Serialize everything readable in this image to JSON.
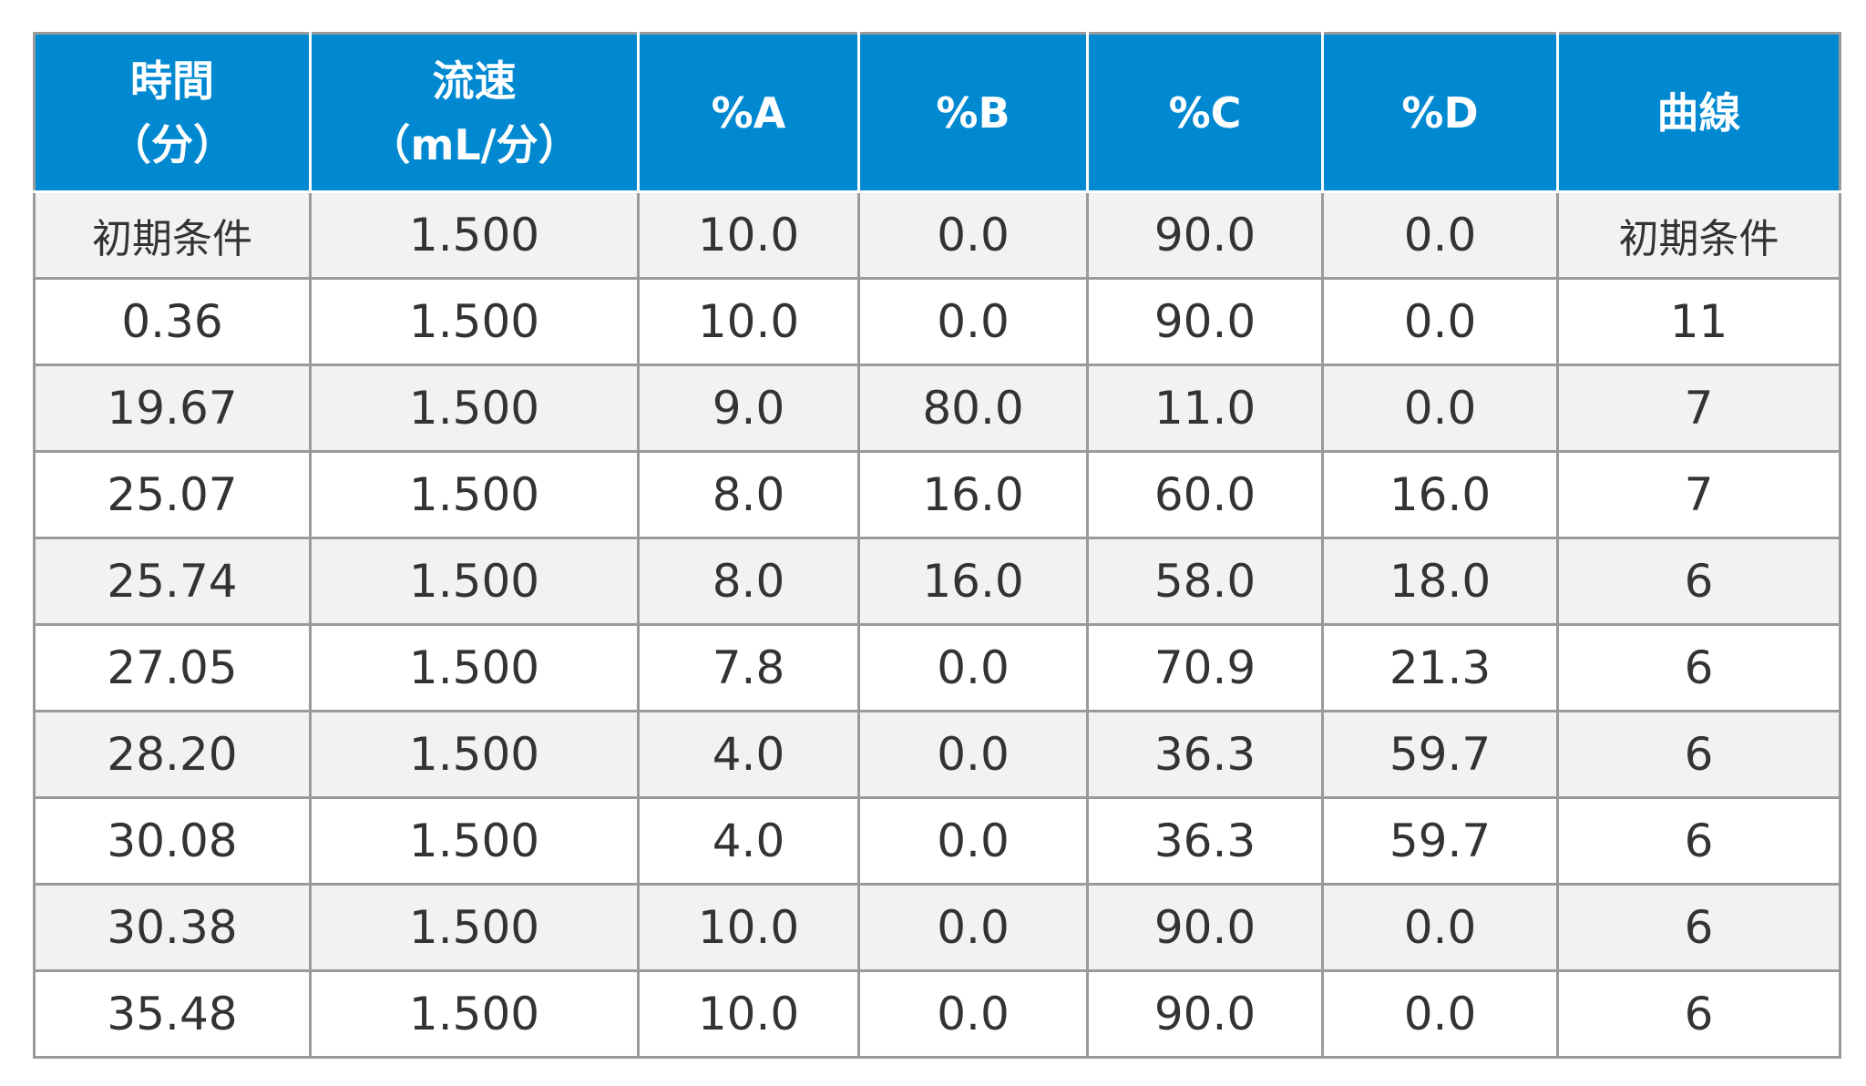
{
  "table": {
    "headers": [
      {
        "line1": "時間",
        "line2": "（分）"
      },
      {
        "line1": "流速",
        "line2": "（mL/分）"
      },
      {
        "line1": "%A",
        "line2": ""
      },
      {
        "line1": "%B",
        "line2": ""
      },
      {
        "line1": "%C",
        "line2": ""
      },
      {
        "line1": "%D",
        "line2": ""
      },
      {
        "line1": "曲線",
        "line2": ""
      }
    ],
    "rows": [
      [
        "初期条件",
        "1.500",
        "10.0",
        "0.0",
        "90.0",
        "0.0",
        "初期条件"
      ],
      [
        "0.36",
        "1.500",
        "10.0",
        "0.0",
        "90.0",
        "0.0",
        "11"
      ],
      [
        "19.67",
        "1.500",
        "9.0",
        "80.0",
        "11.0",
        "0.0",
        "7"
      ],
      [
        "25.07",
        "1.500",
        "8.0",
        "16.0",
        "60.0",
        "16.0",
        "7"
      ],
      [
        "25.74",
        "1.500",
        "8.0",
        "16.0",
        "58.0",
        "18.0",
        "6"
      ],
      [
        "27.05",
        "1.500",
        "7.8",
        "0.0",
        "70.9",
        "21.3",
        "6"
      ],
      [
        "28.20",
        "1.500",
        "4.0",
        "0.0",
        "36.3",
        "59.7",
        "6"
      ],
      [
        "30.08",
        "1.500",
        "4.0",
        "0.0",
        "36.3",
        "59.7",
        "6"
      ],
      [
        "30.38",
        "1.500",
        "10.0",
        "0.0",
        "90.0",
        "0.0",
        "6"
      ],
      [
        "35.48",
        "1.500",
        "10.0",
        "0.0",
        "90.0",
        "0.0",
        "6"
      ]
    ]
  },
  "colors": {
    "header_bg": "#0089d1",
    "header_text": "#ffffff",
    "row_alt_bg": "#f2f2f2",
    "grid": "#9a9a9a"
  }
}
